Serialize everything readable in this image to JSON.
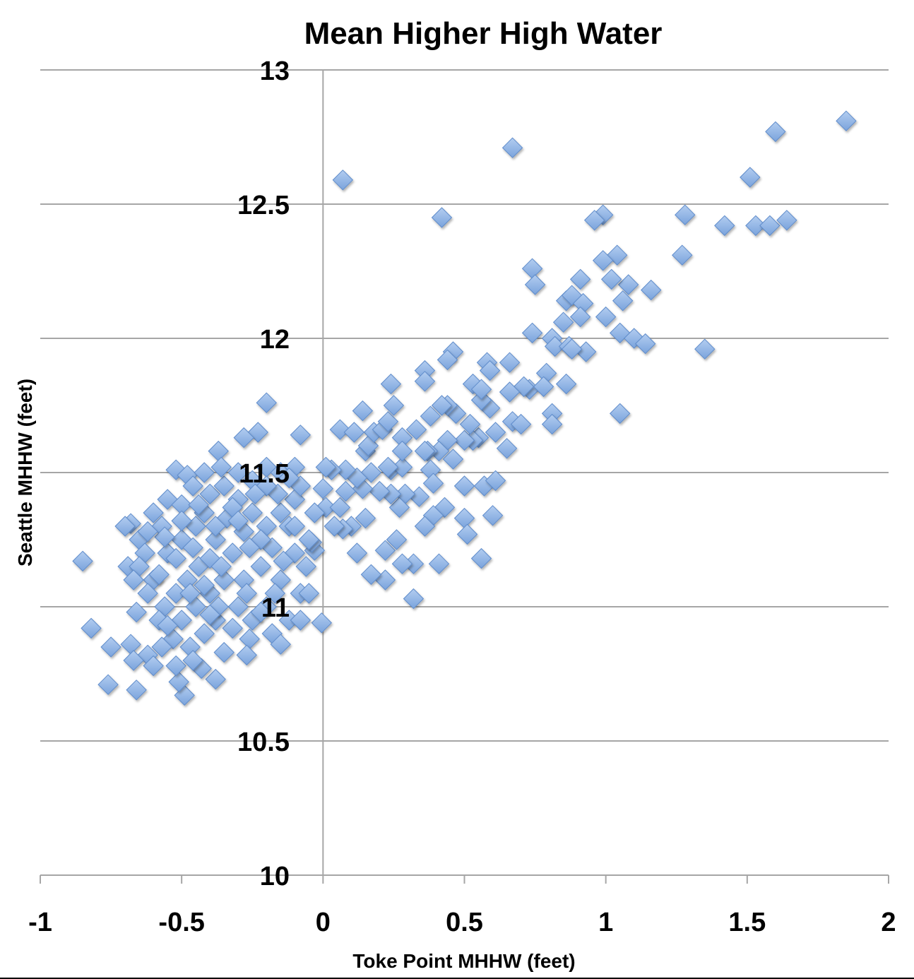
{
  "chart_data": {
    "type": "scatter",
    "title": "Mean Higher High Water",
    "xlabel": "Toke Point MHHW (feet)",
    "ylabel": "Seattle MHHW (feet)",
    "xlim": [
      -1,
      2
    ],
    "ylim": [
      10,
      13
    ],
    "xticks": [
      "-1",
      "-0.5",
      "0",
      "0.5",
      "1",
      "1.5",
      "2"
    ],
    "yticks": [
      "10",
      "10.5",
      "11",
      "11.5",
      "12",
      "12.5",
      "13"
    ],
    "grid": "horizontal",
    "legend": "none",
    "marker": "diamond",
    "colors": {
      "marker_fill": "#8fb3e6",
      "marker_stroke": "#5f8ccb",
      "grid": "#a6a6a6"
    },
    "points": [
      [
        -0.85,
        11.17
      ],
      [
        -0.82,
        10.92
      ],
      [
        -0.76,
        10.71
      ],
      [
        -0.75,
        10.85
      ],
      [
        -0.66,
        10.69
      ],
      [
        -0.68,
        10.86
      ],
      [
        -0.69,
        11.15
      ],
      [
        -0.68,
        11.31
      ],
      [
        -0.66,
        10.98
      ],
      [
        -0.52,
        11.51
      ],
      [
        -0.48,
        11.49
      ],
      [
        -0.2,
        11.76
      ],
      [
        -0.23,
        11.65
      ],
      [
        -0.28,
        11.63
      ],
      [
        -0.08,
        11.64
      ],
      [
        -0.37,
        11.58
      ],
      [
        -0.005,
        10.94
      ],
      [
        -0.49,
        10.67
      ],
      [
        -0.51,
        10.72
      ],
      [
        -0.38,
        10.73
      ],
      [
        0.07,
        12.59
      ],
      [
        0.42,
        12.45
      ],
      [
        0.67,
        12.71
      ],
      [
        1.6,
        12.77
      ],
      [
        1.85,
        12.81
      ],
      [
        1.51,
        12.6
      ],
      [
        1.28,
        12.46
      ],
      [
        1.42,
        12.42
      ],
      [
        1.53,
        12.42
      ],
      [
        1.58,
        12.42
      ],
      [
        1.64,
        12.44
      ],
      [
        1.27,
        12.31
      ],
      [
        1.35,
        11.96
      ],
      [
        1.05,
        11.72
      ],
      [
        1.16,
        12.18
      ],
      [
        1.08,
        12.2
      ],
      [
        1.04,
        12.31
      ],
      [
        0.99,
        12.46
      ],
      [
        0.96,
        12.44
      ],
      [
        0.99,
        12.29
      ],
      [
        1.02,
        12.22
      ],
      [
        1.06,
        12.14
      ],
      [
        1.05,
        12.02
      ],
      [
        1.1,
        12.0
      ],
      [
        1.14,
        11.98
      ],
      [
        1.0,
        12.08
      ],
      [
        0.91,
        12.22
      ],
      [
        0.74,
        12.26
      ],
      [
        0.75,
        12.2
      ],
      [
        0.86,
        12.14
      ],
      [
        0.88,
        12.16
      ],
      [
        0.92,
        12.13
      ],
      [
        0.91,
        12.08
      ],
      [
        0.85,
        12.06
      ],
      [
        0.74,
        12.02
      ],
      [
        0.81,
        12.0
      ],
      [
        0.82,
        11.97
      ],
      [
        0.87,
        11.97
      ],
      [
        0.93,
        11.95
      ],
      [
        0.88,
        11.96
      ],
      [
        0.86,
        11.83
      ],
      [
        0.79,
        11.87
      ],
      [
        0.81,
        11.72
      ],
      [
        0.81,
        11.68
      ],
      [
        0.66,
        11.91
      ],
      [
        0.58,
        11.91
      ],
      [
        0.59,
        11.88
      ],
      [
        0.46,
        11.95
      ],
      [
        0.44,
        11.92
      ],
      [
        0.36,
        11.88
      ],
      [
        0.36,
        11.84
      ],
      [
        0.24,
        11.83
      ],
      [
        0.73,
        11.81
      ],
      [
        0.71,
        11.82
      ],
      [
        0.78,
        11.82
      ],
      [
        0.66,
        11.8
      ],
      [
        0.59,
        11.74
      ],
      [
        0.56,
        11.77
      ],
      [
        0.53,
        11.83
      ],
      [
        0.56,
        11.81
      ],
      [
        0.67,
        11.69
      ],
      [
        0.7,
        11.68
      ],
      [
        0.65,
        11.59
      ],
      [
        0.61,
        11.65
      ],
      [
        0.55,
        11.63
      ],
      [
        0.53,
        11.62
      ],
      [
        0.5,
        11.62
      ],
      [
        0.52,
        11.68
      ],
      [
        0.47,
        11.72
      ],
      [
        0.44,
        11.75
      ],
      [
        0.42,
        11.75
      ],
      [
        0.38,
        11.71
      ],
      [
        0.44,
        11.62
      ],
      [
        0.41,
        11.58
      ],
      [
        0.37,
        11.58
      ],
      [
        0.38,
        11.51
      ],
      [
        0.39,
        11.46
      ],
      [
        0.46,
        11.55
      ],
      [
        0.5,
        11.45
      ],
      [
        0.57,
        11.45
      ],
      [
        0.61,
        11.47
      ],
      [
        0.6,
        11.34
      ],
      [
        0.5,
        11.33
      ],
      [
        0.51,
        11.27
      ],
      [
        0.56,
        11.18
      ],
      [
        0.41,
        11.16
      ],
      [
        0.43,
        11.37
      ],
      [
        0.39,
        11.34
      ],
      [
        0.36,
        11.3
      ],
      [
        0.34,
        11.41
      ],
      [
        0.32,
        11.03
      ],
      [
        0.32,
        11.16
      ],
      [
        0.28,
        11.16
      ],
      [
        0.22,
        11.1
      ],
      [
        0.17,
        11.12
      ],
      [
        0.22,
        11.21
      ],
      [
        0.26,
        11.25
      ],
      [
        0.12,
        11.2
      ],
      [
        0.15,
        11.33
      ],
      [
        0.1,
        11.3
      ],
      [
        0.07,
        11.29
      ],
      [
        0.04,
        11.3
      ],
      [
        -0.03,
        11.21
      ],
      [
        -0.04,
        11.24
      ],
      [
        0.29,
        11.42
      ],
      [
        0.27,
        11.37
      ],
      [
        0.24,
        11.42
      ],
      [
        0.2,
        11.43
      ],
      [
        0.24,
        11.51
      ],
      [
        0.28,
        11.52
      ],
      [
        0.23,
        11.52
      ],
      [
        0.17,
        11.5
      ],
      [
        0.14,
        11.44
      ],
      [
        0.12,
        11.48
      ],
      [
        0.08,
        11.51
      ],
      [
        0.03,
        11.51
      ],
      [
        0.01,
        11.52
      ],
      [
        0.0,
        11.44
      ],
      [
        0.01,
        11.37
      ],
      [
        0.06,
        11.37
      ],
      [
        0.08,
        11.43
      ],
      [
        0.15,
        11.58
      ],
      [
        0.16,
        11.6
      ],
      [
        0.18,
        11.65
      ],
      [
        0.14,
        11.73
      ],
      [
        0.06,
        11.66
      ],
      [
        0.11,
        11.65
      ],
      [
        0.21,
        11.66
      ],
      [
        0.23,
        11.69
      ],
      [
        0.25,
        11.75
      ],
      [
        0.28,
        11.63
      ],
      [
        0.33,
        11.66
      ],
      [
        0.36,
        11.58
      ],
      [
        0.28,
        11.58
      ],
      [
        -0.6,
        11.35
      ],
      [
        -0.57,
        11.3
      ],
      [
        -0.55,
        11.2
      ],
      [
        -0.5,
        11.25
      ],
      [
        -0.45,
        11.3
      ],
      [
        -0.42,
        11.35
      ],
      [
        -0.4,
        11.42
      ],
      [
        -0.35,
        11.45
      ],
      [
        -0.3,
        11.4
      ],
      [
        -0.25,
        11.35
      ],
      [
        -0.2,
        11.3
      ],
      [
        -0.15,
        11.35
      ],
      [
        -0.1,
        11.4
      ],
      [
        -0.12,
        11.3
      ],
      [
        -0.18,
        11.22
      ],
      [
        -0.22,
        11.15
      ],
      [
        -0.28,
        11.1
      ],
      [
        -0.32,
        11.2
      ],
      [
        -0.38,
        11.25
      ],
      [
        -0.44,
        11.15
      ],
      [
        -0.48,
        11.1
      ],
      [
        -0.52,
        11.05
      ],
      [
        -0.56,
        11.0
      ],
      [
        -0.6,
        11.1
      ],
      [
        -0.62,
        11.05
      ],
      [
        -0.58,
        10.95
      ],
      [
        -0.5,
        10.95
      ],
      [
        -0.45,
        11.0
      ],
      [
        -0.4,
        11.05
      ],
      [
        -0.35,
        11.1
      ],
      [
        -0.3,
        11.0
      ],
      [
        -0.25,
        10.95
      ],
      [
        -0.2,
        11.0
      ],
      [
        -0.15,
        11.1
      ],
      [
        -0.1,
        11.2
      ],
      [
        -0.08,
        11.05
      ],
      [
        -0.12,
        10.95
      ],
      [
        -0.18,
        10.9
      ],
      [
        -0.26,
        10.88
      ],
      [
        -0.32,
        10.92
      ],
      [
        -0.38,
        10.95
      ],
      [
        -0.42,
        10.9
      ],
      [
        -0.47,
        10.85
      ],
      [
        -0.53,
        10.88
      ],
      [
        -0.57,
        10.85
      ],
      [
        -0.62,
        10.82
      ],
      [
        -0.52,
        10.78
      ],
      [
        -0.43,
        10.77
      ],
      [
        -0.27,
        10.82
      ],
      [
        -0.15,
        10.86
      ],
      [
        -0.08,
        10.95
      ],
      [
        -0.65,
        11.25
      ],
      [
        -0.63,
        11.2
      ],
      [
        -0.55,
        11.4
      ],
      [
        -0.5,
        11.38
      ],
      [
        -0.46,
        11.45
      ],
      [
        -0.42,
        11.5
      ],
      [
        -0.36,
        11.52
      ],
      [
        -0.3,
        11.5
      ],
      [
        -0.25,
        11.47
      ],
      [
        -0.2,
        11.52
      ],
      [
        -0.15,
        11.5
      ],
      [
        -0.1,
        11.52
      ],
      [
        -0.08,
        11.45
      ],
      [
        -0.1,
        11.3
      ],
      [
        -0.05,
        11.25
      ],
      [
        -0.03,
        11.35
      ],
      [
        -0.06,
        11.15
      ],
      [
        -0.14,
        11.17
      ],
      [
        -0.22,
        11.25
      ],
      [
        -0.28,
        11.28
      ],
      [
        -0.34,
        11.33
      ],
      [
        -0.4,
        11.18
      ],
      [
        -0.46,
        11.22
      ],
      [
        -0.52,
        11.18
      ],
      [
        -0.58,
        11.12
      ],
      [
        -0.65,
        11.15
      ],
      [
        -0.67,
        11.1
      ],
      [
        -0.47,
        11.05
      ],
      [
        -0.37,
        11.0
      ],
      [
        -0.27,
        11.05
      ],
      [
        -0.17,
        11.05
      ],
      [
        -0.05,
        11.05
      ],
      [
        -0.22,
        10.98
      ],
      [
        -0.35,
        10.83
      ],
      [
        -0.4,
        10.97
      ],
      [
        -0.55,
        10.93
      ],
      [
        -0.6,
        10.78
      ],
      [
        -0.67,
        10.8
      ],
      [
        -0.46,
        10.8
      ],
      [
        -0.32,
        11.37
      ],
      [
        -0.26,
        11.22
      ],
      [
        -0.38,
        11.3
      ],
      [
        -0.44,
        11.38
      ],
      [
        -0.16,
        11.42
      ],
      [
        -0.2,
        11.45
      ],
      [
        -0.3,
        11.32
      ],
      [
        -0.36,
        11.15
      ],
      [
        -0.42,
        11.08
      ],
      [
        -0.56,
        11.26
      ],
      [
        -0.62,
        11.28
      ],
      [
        -0.7,
        11.3
      ],
      [
        -0.5,
        11.32
      ],
      [
        -0.24,
        11.42
      ],
      [
        -0.12,
        11.48
      ]
    ]
  }
}
